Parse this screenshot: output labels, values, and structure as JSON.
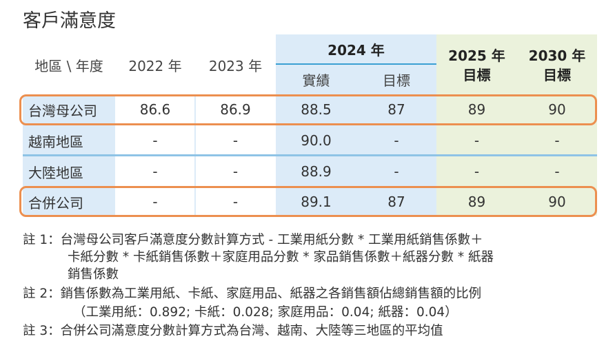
{
  "title": "客戶滿意度",
  "table": {
    "header": {
      "region_year": "地區 \\ 年度",
      "y2022": "2022 年",
      "y2023": "2023 年",
      "y2024": "2024 年",
      "actual": "實績",
      "target": "目標",
      "y2025": "2025 年",
      "y2030": "2030 年",
      "target2025": "目標",
      "target2030": "目標"
    },
    "rows": [
      {
        "label": "台灣母公司",
        "v2022": "86.6",
        "v2023": "86.9",
        "v2024_actual": "88.5",
        "v2024_target": "87",
        "v2025": "89",
        "v2030": "90",
        "highlighted": true
      },
      {
        "label": "越南地區",
        "v2022": "-",
        "v2023": "-",
        "v2024_actual": "90.0",
        "v2024_target": "-",
        "v2025": "-",
        "v2030": "-",
        "highlighted": false
      },
      {
        "label": "大陸地區",
        "v2022": "-",
        "v2023": "-",
        "v2024_actual": "88.9",
        "v2024_target": "-",
        "v2025": "-",
        "v2030": "-",
        "highlighted": false
      },
      {
        "label": "合併公司",
        "v2022": "-",
        "v2023": "-",
        "v2024_actual": "89.1",
        "v2024_target": "87",
        "v2025": "89",
        "v2030": "90",
        "highlighted": true
      }
    ]
  },
  "notes": {
    "n1_l1": "註 1：台灣母公司客戶滿意度分數計算方式 - 工業用紙分數 * 工業用紙銷售係數＋",
    "n1_l2": "卡紙分數 * 卡紙銷售係數＋家庭用品分數 * 家品銷售係數＋紙器分數 * 紙器",
    "n1_l3": "銷售係數",
    "n2_l1": "註 2：銷售係數為工業用紙、卡紙、家庭用品、紙器之各銷售額佔總銷售額的比例",
    "n2_l2": "（工業用紙：0.892; 卡紙：0.028; 家庭用品：0.04; 紙器：0.04）",
    "n3_l1": "註 3：合併公司滿意度分數計算方式為台灣、越南、大陸等三地區的平均值"
  },
  "colors": {
    "blue_bg": "#dcebf8",
    "green_bg": "#ebf2dc",
    "highlight": "#ec8f4f",
    "divider": "#8ec3e6"
  }
}
